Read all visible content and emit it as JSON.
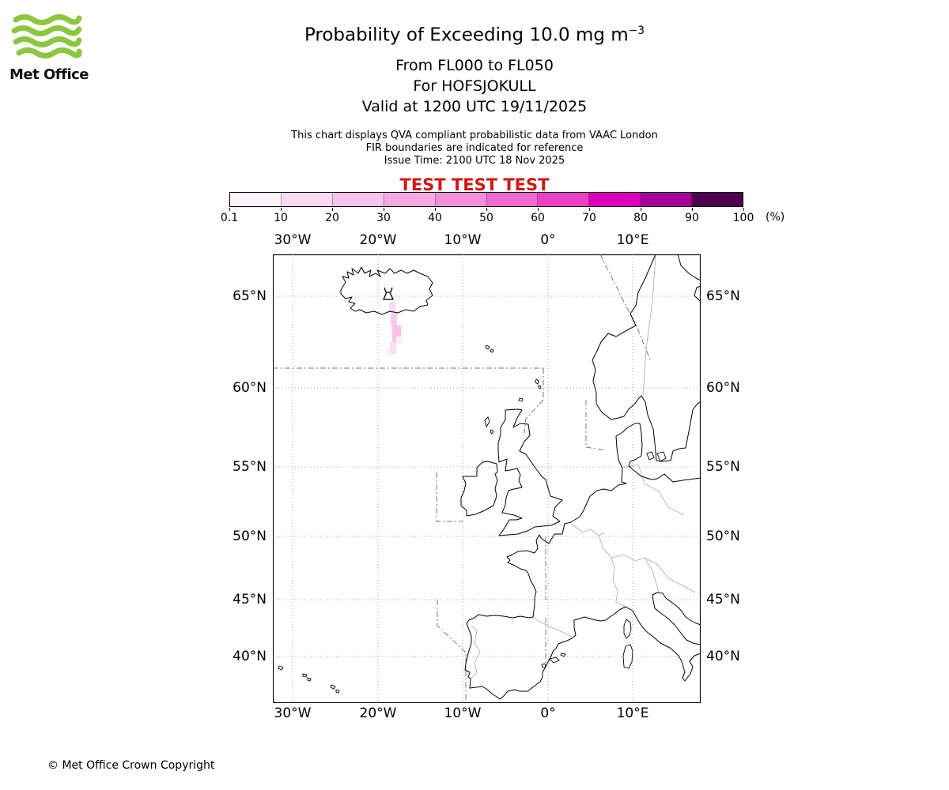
{
  "logo": {
    "brand": "Met Office"
  },
  "header": {
    "title_main": "Probability of Exceeding 10.0 mg m",
    "title_exp": "−3",
    "line_flight_levels": "From FL000 to FL050",
    "line_volcano": "For HOFSJOKULL",
    "line_valid": "Valid at 1200 UTC 19/11/2025",
    "note_qva": "This chart displays QVA compliant probabilistic data from VAAC London",
    "note_fir": "FIR boundaries are indicated for reference",
    "note_issue": "Issue Time: 2100 UTC 18 Nov 2025",
    "test_banner": "TEST TEST TEST"
  },
  "colorbar": {
    "tick_labels": [
      "0.1",
      "10",
      "20",
      "30",
      "40",
      "50",
      "60",
      "70",
      "80",
      "90",
      "100"
    ],
    "unit": "(%)",
    "segment_colors": [
      "#fdf3fb",
      "#fbd9f3",
      "#f9c2ec",
      "#f7a9e3",
      "#f38edb",
      "#ef6bd1",
      "#eb3fc6",
      "#dc00b8",
      "#a6009a",
      "#4b0050"
    ]
  },
  "map": {
    "lon_labels": [
      "30°W",
      "20°W",
      "10°W",
      "0°",
      "10°E"
    ],
    "lat_labels": [
      "65°N",
      "60°N",
      "55°N",
      "50°N",
      "45°N",
      "40°N"
    ]
  },
  "colors": {
    "test_red": "#d01717",
    "logo_green": "#8cc63e",
    "plume_light": "#fdeefa",
    "plume_mid": "#f8c0eb"
  },
  "footer": {
    "copyright": "© Met Office Crown Copyright"
  }
}
